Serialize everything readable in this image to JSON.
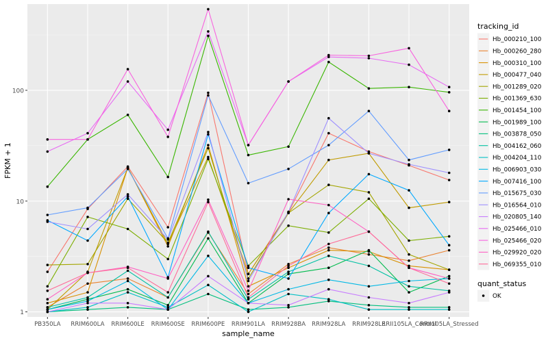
{
  "chart_data": {
    "type": "line",
    "xlabel": "sample_name",
    "ylabel": "FPKM + 1",
    "y_scale": "log10",
    "ylim": [
      0.9,
      600
    ],
    "y_ticks": [
      1,
      10,
      100
    ],
    "y_tick_labels": [
      "1",
      "10",
      "100"
    ],
    "grid": true,
    "legend_placement": "right",
    "categories": [
      "PB350LA",
      "RRIM600LA",
      "RRIM600LE",
      "RRIM600SE",
      "RRIM600PE",
      "RRIM901LA",
      "RRIM928BA",
      "RRIM928LA",
      "RRIM928LE",
      "RRII105LA_Control",
      "RRII105LA_Stressed"
    ],
    "legend": {
      "title": "tracking_id",
      "quant_title": "quant_status",
      "quant_items": [
        "OK"
      ]
    },
    "series": [
      {
        "name": "Hb_000210_100",
        "color": "#F8766D",
        "values": [
          2.3,
          8.5,
          20.5,
          5.8,
          95,
          2.2,
          7.9,
          41,
          28,
          21,
          15.5
        ]
      },
      {
        "name": "Hb_000260_280",
        "color": "#EA8331",
        "values": [
          1.1,
          1.8,
          2.0,
          1.35,
          5.2,
          1.45,
          2.7,
          3.8,
          3.3,
          2.9,
          3.6
        ]
      },
      {
        "name": "Hb_000310_100",
        "color": "#D89000",
        "values": [
          1.2,
          1.5,
          20,
          3.9,
          32,
          1.7,
          2.5,
          3.6,
          3.5,
          2.6,
          2.4
        ]
      },
      {
        "name": "Hb_000477_040",
        "color": "#C09B00",
        "values": [
          1.05,
          2.3,
          20,
          4.1,
          25,
          2.2,
          7.8,
          23.5,
          27,
          8.7,
          9.8
        ]
      },
      {
        "name": "Hb_001289_020",
        "color": "#A3A500",
        "values": [
          2.65,
          2.7,
          10.5,
          4.2,
          30,
          2.0,
          7.8,
          14,
          12,
          3.3,
          2.4
        ]
      },
      {
        "name": "Hb_001369_630",
        "color": "#7CAE00",
        "values": [
          1.7,
          7.2,
          5.6,
          3.0,
          24,
          2.6,
          6.0,
          5.2,
          10.5,
          4.4,
          4.8
        ]
      },
      {
        "name": "Hb_001454_100",
        "color": "#39B600",
        "values": [
          13.5,
          36,
          60,
          16.5,
          310,
          26,
          31,
          180,
          104,
          107,
          96
        ]
      },
      {
        "name": "Hb_001989_100",
        "color": "#00BB4E",
        "values": [
          1.05,
          1.3,
          1.6,
          1.15,
          4.6,
          1.2,
          2.2,
          2.5,
          3.6,
          1.5,
          2.1
        ]
      },
      {
        "name": "Hb_003878_050",
        "color": "#00BF7D",
        "values": [
          1.0,
          1.05,
          1.1,
          1.05,
          1.45,
          1.05,
          1.1,
          1.25,
          1.15,
          1.1,
          1.1
        ]
      },
      {
        "name": "Hb_004162_060",
        "color": "#00C1A3",
        "values": [
          1.1,
          1.35,
          2.35,
          1.35,
          5.3,
          1.3,
          2.3,
          3.2,
          2.6,
          1.7,
          1.55
        ]
      },
      {
        "name": "Hb_004204_110",
        "color": "#00BFC4",
        "values": [
          1.0,
          1.1,
          1.5,
          1.1,
          1.75,
          1.0,
          1.45,
          1.3,
          1.05,
          1.05,
          1.05
        ]
      },
      {
        "name": "Hb_006903_030",
        "color": "#00B8E5",
        "values": [
          1.05,
          1.25,
          1.9,
          1.05,
          3.2,
          1.2,
          1.6,
          1.95,
          1.7,
          1.9,
          2.0
        ]
      },
      {
        "name": "Hb_007416_100",
        "color": "#00A9FF",
        "values": [
          6.7,
          4.4,
          11,
          2.05,
          40,
          2.5,
          2.0,
          7.8,
          17.5,
          12.5,
          4.0
        ]
      },
      {
        "name": "Hb_015675_030",
        "color": "#619CFF",
        "values": [
          7.5,
          8.7,
          19.5,
          4.6,
          90,
          14.5,
          19.5,
          32,
          65,
          23.5,
          29
        ]
      },
      {
        "name": "Hb_016564_010",
        "color": "#9E8FFF",
        "values": [
          6.5,
          5.6,
          11.5,
          4.5,
          42,
          1.9,
          8.0,
          56,
          27,
          21.5,
          18
        ]
      },
      {
        "name": "Hb_020805_140",
        "color": "#C77CFF",
        "values": [
          1.0,
          1.2,
          1.2,
          1.05,
          2.1,
          1.2,
          1.15,
          1.6,
          1.35,
          1.2,
          1.5
        ]
      },
      {
        "name": "Hb_025466_010",
        "color": "#E76BF3",
        "values": [
          28,
          41,
          120,
          44,
          340,
          32,
          120,
          200,
          195,
          170,
          107
        ]
      },
      {
        "name": "Hb_025466_020",
        "color": "#F863DF",
        "values": [
          36,
          36,
          155,
          38,
          540,
          32,
          120,
          208,
          205,
          240,
          65
        ]
      },
      {
        "name": "Hb_029920_020",
        "color": "#FF61C3",
        "values": [
          1.3,
          2.25,
          2.55,
          2.0,
          10.3,
          1.55,
          10.4,
          9.2,
          5.3,
          2.5,
          2.0
        ]
      },
      {
        "name": "Hb_069355_010",
        "color": "#FF6A98",
        "values": [
          1.55,
          2.25,
          2.5,
          1.5,
          9.8,
          1.35,
          2.6,
          4.1,
          5.3,
          2.5,
          1.8
        ]
      }
    ]
  }
}
